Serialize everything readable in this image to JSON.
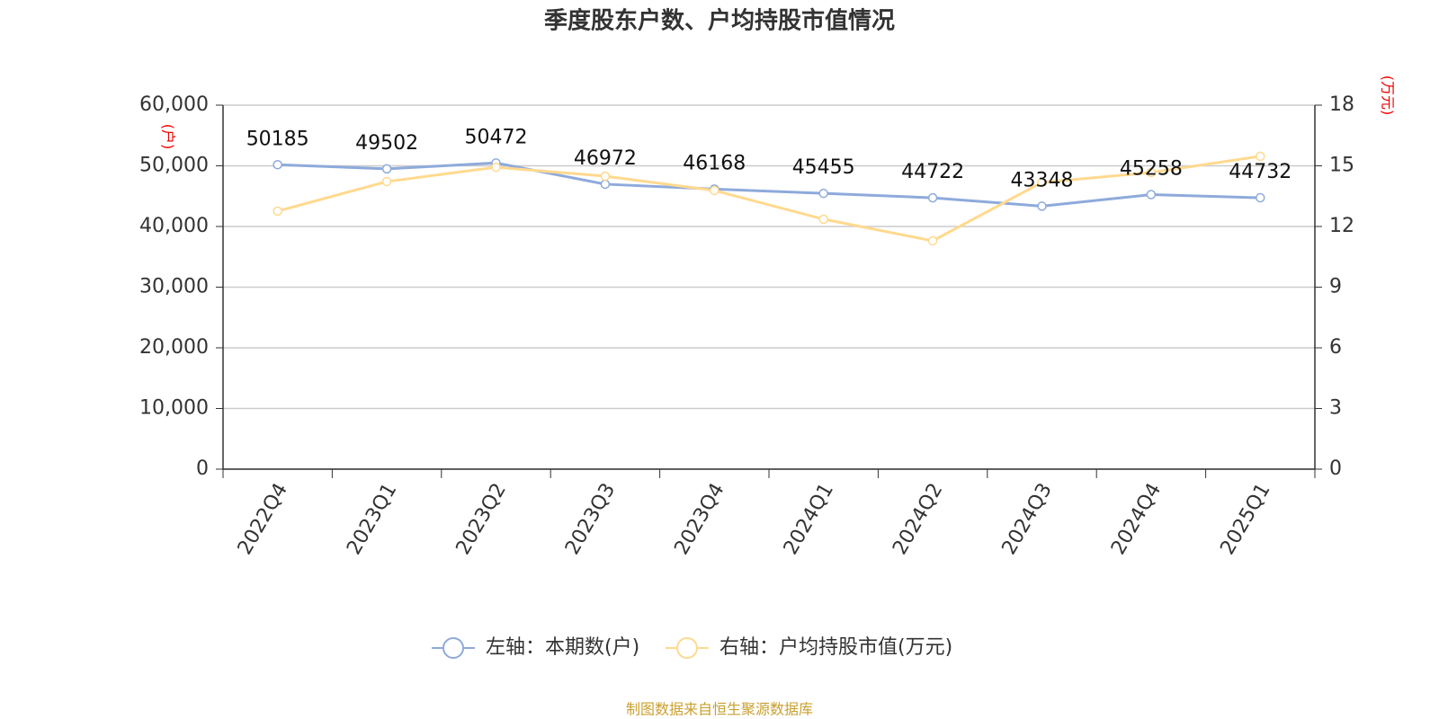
{
  "chart_data": {
    "type": "line",
    "title": "季度股东户数、户均持股市值情况",
    "y_label": "(户)",
    "y2_label": "(万元)",
    "source": "制图数据来自恒生聚源数据库",
    "categories": [
      "2022Q4",
      "2023Q1",
      "2023Q2",
      "2023Q3",
      "2023Q4",
      "2024Q1",
      "2024Q2",
      "2024Q3",
      "2024Q4",
      "2025Q1"
    ],
    "series": [
      {
        "name": "左轴：本期数(户)",
        "color": "#8eaadb",
        "axis": "y",
        "values": [
          50185,
          49502,
          50472,
          46972,
          46168,
          45455,
          44722,
          43348,
          45258,
          44732
        ]
      },
      {
        "name": "右轴：户均持股市值(万元)",
        "color": "#ffd98e",
        "axis": "y2",
        "values": [
          12.76,
          14.22,
          14.93,
          14.49,
          13.78,
          12.36,
          11.29,
          14.18,
          14.67,
          15.47
        ]
      }
    ],
    "ylim": [
      0,
      60000
    ],
    "yticks": [
      0,
      {
        "value": 10000,
        "label": "10,000"
      },
      {
        "value": 20000,
        "label": "20,000"
      },
      {
        "value": 30000,
        "label": "30,000"
      },
      {
        "value": 40000,
        "label": "40,000"
      },
      {
        "value": 50000,
        "label": "50,000"
      },
      {
        "value": 60000,
        "label": "60,000"
      }
    ],
    "y2lim": [
      0,
      18
    ],
    "y2ticks": [
      0,
      3,
      6,
      9,
      12,
      15,
      18
    ],
    "grid": true
  }
}
